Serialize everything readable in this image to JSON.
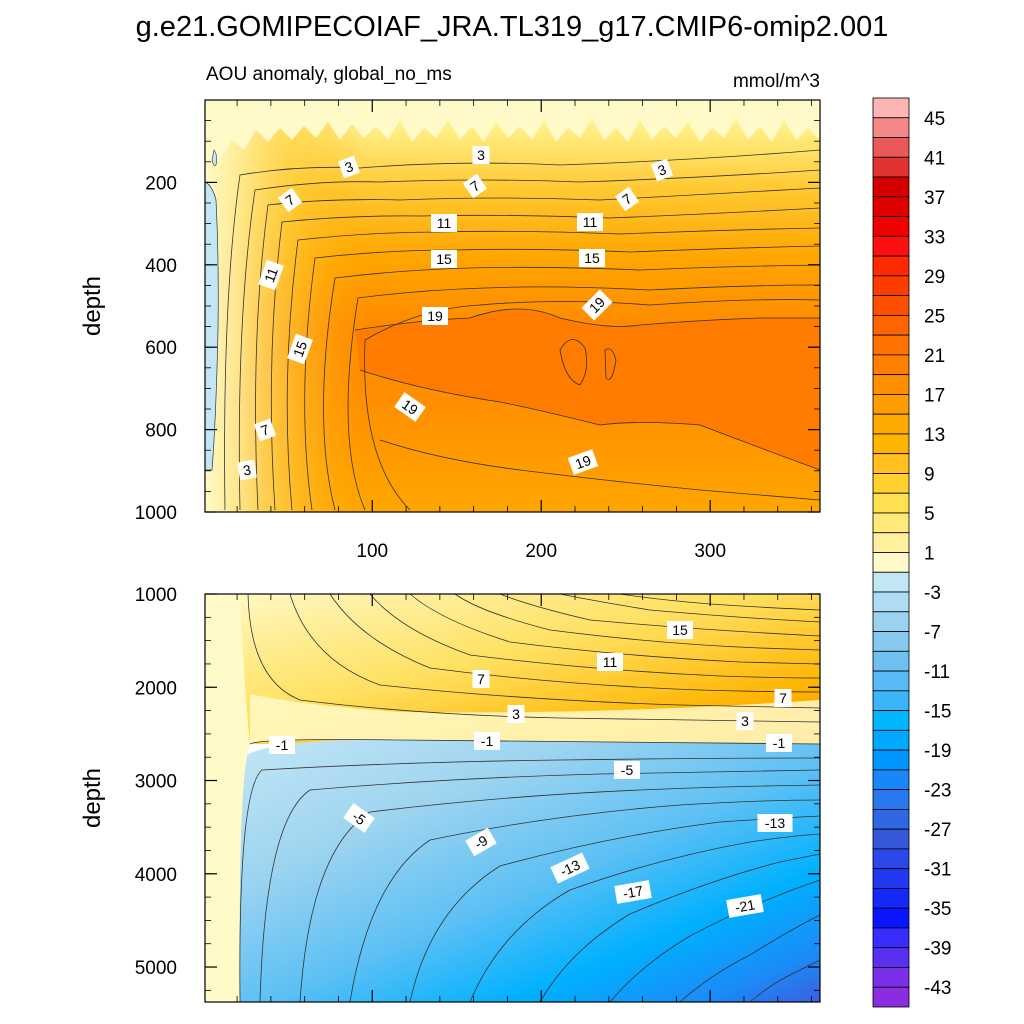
{
  "chart_data": {
    "type": "heatmap",
    "title": "g.e21.GOMIPECOIAF_JRA.TL319_g17.CMIP6-omip2.001",
    "subtitle_left": "AOU anomaly, global_no_ms",
    "units": "mmol/m^3",
    "x": {
      "ticks": [
        100,
        200,
        300
      ],
      "range": [
        1,
        365
      ]
    },
    "panels": [
      {
        "name": "upper",
        "ylabel": "depth",
        "yrange": [
          0,
          1000
        ],
        "yticks": [
          200,
          400,
          600,
          800,
          1000
        ],
        "contour_labels": [
          "3",
          "3",
          "3",
          "7",
          "7",
          "7",
          "11",
          "11",
          "11",
          "15",
          "15",
          "15",
          "19",
          "19",
          "19",
          "19",
          "7",
          "3"
        ]
      },
      {
        "name": "lower",
        "ylabel": "depth",
        "yrange": [
          1000,
          5375
        ],
        "yticks": [
          1000,
          2000,
          3000,
          4000,
          5000
        ],
        "contour_labels": [
          "15",
          "11",
          "7",
          "7",
          "3",
          "3",
          "-1",
          "-1",
          "-1",
          "-5",
          "-5",
          "-13",
          "-9",
          "-13",
          "-17",
          "-21"
        ]
      }
    ],
    "colorbar": {
      "labels": [
        "45",
        "41",
        "37",
        "33",
        "29",
        "25",
        "21",
        "17",
        "13",
        "9",
        "5",
        "1",
        "-3",
        "-7",
        "-11",
        "-15",
        "-19",
        "-23",
        "-27",
        "-31",
        "-35",
        "-39",
        "-43"
      ],
      "colors": [
        "#fdb4b4",
        "#f48888",
        "#ea5858",
        "#e23232",
        "#d40000",
        "#e00000",
        "#f00000",
        "#ff1010",
        "#ff2a00",
        "#ff3c00",
        "#ff5000",
        "#ff6400",
        "#ff7200",
        "#ff8000",
        "#ff8e00",
        "#ff9c00",
        "#ffaa00",
        "#ffb400",
        "#ffc020",
        "#ffd030",
        "#ffe050",
        "#ffe97a",
        "#fff0a0",
        "#fffac8",
        "#c2e6f4",
        "#aedcf2",
        "#9ad2f0",
        "#86c8ee",
        "#6ec0f0",
        "#58baf4",
        "#3cb4f8",
        "#00b6ff",
        "#00a8ff",
        "#0096ff",
        "#1888f8",
        "#2878f0",
        "#3068e4",
        "#3458d8",
        "#2c48e8",
        "#2038f0",
        "#1428f8",
        "#0a14ff",
        "#3a2cff",
        "#5a30f0",
        "#7a30e8",
        "#8a2ce0"
      ]
    }
  }
}
